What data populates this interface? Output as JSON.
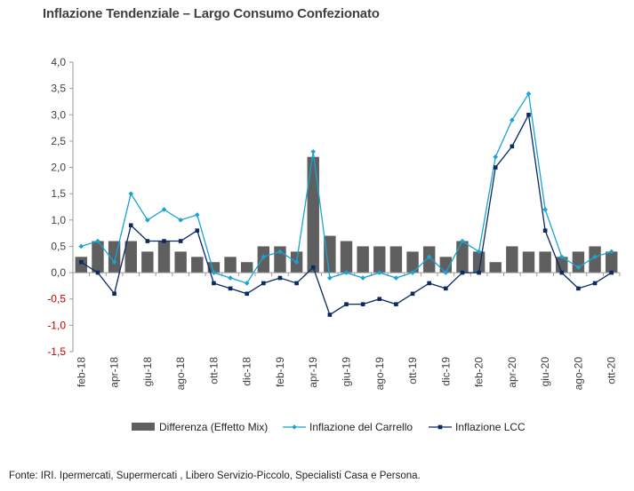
{
  "title": "Inflazione Tendenziale – Largo Consumo Confezionato",
  "source": "Fonte: IRI. Ipermercati, Supermercati , Libero Servizio-Piccolo, Specialisti Casa e Persona.",
  "colors": {
    "bars": "#5f5f5f",
    "carrello": "#1aa3d4",
    "lcc": "#0b2a63",
    "axis": "#9a9a9a"
  },
  "chart_data": {
    "type": "bar",
    "title": "Inflazione Tendenziale – Largo Consumo Confezionato",
    "ylim": [
      -1.5,
      4.0
    ],
    "yticks": [
      "4,0",
      "3,5",
      "3,0",
      "2,5",
      "2,0",
      "1,5",
      "1,0",
      "0,5",
      "0,0",
      "-0,5",
      "-1,0",
      "-1,5"
    ],
    "ytick_values": [
      4.0,
      3.5,
      3.0,
      2.5,
      2.0,
      1.5,
      1.0,
      0.5,
      0.0,
      -0.5,
      -1.0,
      -1.5
    ],
    "categories": [
      "feb-18",
      "mar-18",
      "apr-18",
      "mag-18",
      "giu-18",
      "lug-18",
      "ago-18",
      "set-18",
      "ott-18",
      "nov-18",
      "dic-18",
      "gen-19",
      "feb-19",
      "mar-19",
      "apr-19",
      "mag-19",
      "giu-19",
      "lug-19",
      "ago-19",
      "set-19",
      "ott-19",
      "nov-19",
      "dic-19",
      "gen-20",
      "feb-20",
      "mar-20",
      "apr-20",
      "mag-20",
      "giu-20",
      "lug-20",
      "ago-20",
      "set-20",
      "ott-20"
    ],
    "x_labels": [
      "feb-18",
      "",
      "apr-18",
      "",
      "giu-18",
      "",
      "ago-18",
      "",
      "ott-18",
      "",
      "dic-18",
      "",
      "feb-19",
      "",
      "apr-19",
      "",
      "giu-19",
      "",
      "ago-19",
      "",
      "ott-19",
      "",
      "dic-19",
      "",
      "feb-20",
      "",
      "apr-20",
      "",
      "giu-20",
      "",
      "ago-20",
      "",
      "ott-20"
    ],
    "legend_position": "bottom",
    "series": [
      {
        "name": "Differenza (Effetto Mix)",
        "kind": "bar",
        "values": [
          0.3,
          0.6,
          0.6,
          0.6,
          0.4,
          0.6,
          0.4,
          0.3,
          0.2,
          0.3,
          0.2,
          0.5,
          0.5,
          0.4,
          2.2,
          0.7,
          0.6,
          0.5,
          0.5,
          0.5,
          0.4,
          0.5,
          0.3,
          0.6,
          0.4,
          0.2,
          0.5,
          0.4,
          0.4,
          0.3,
          0.4,
          0.5,
          0.4
        ]
      },
      {
        "name": "Inflazione del Carrello",
        "kind": "line",
        "values": [
          0.5,
          0.6,
          0.2,
          1.5,
          1.0,
          1.2,
          1.0,
          1.1,
          0.0,
          -0.1,
          -0.2,
          0.3,
          0.4,
          0.2,
          2.3,
          -0.1,
          0.0,
          -0.1,
          0.0,
          -0.1,
          0.0,
          0.3,
          0.0,
          0.6,
          0.4,
          2.2,
          2.9,
          3.4,
          1.2,
          0.3,
          0.1,
          0.3,
          0.4
        ]
      },
      {
        "name": "Inflazione LCC",
        "kind": "line",
        "values": [
          0.2,
          0.0,
          -0.4,
          0.9,
          0.6,
          0.6,
          0.6,
          0.8,
          -0.2,
          -0.3,
          -0.4,
          -0.2,
          -0.1,
          -0.2,
          0.1,
          -0.8,
          -0.6,
          -0.6,
          -0.5,
          -0.6,
          -0.4,
          -0.2,
          -0.3,
          0.0,
          0.0,
          2.0,
          2.4,
          3.0,
          0.8,
          0.0,
          -0.3,
          -0.2,
          0.0
        ]
      }
    ]
  }
}
